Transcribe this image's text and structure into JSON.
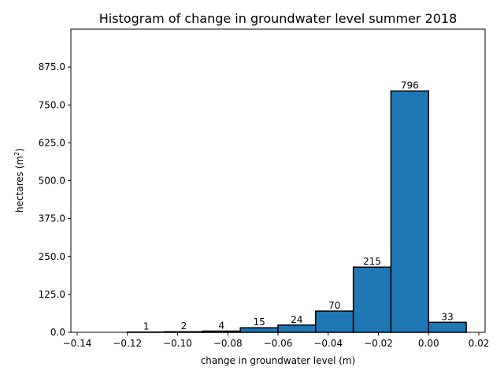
{
  "chart_data": {
    "type": "bar",
    "subtype": "histogram",
    "title": "Histogram of change in groundwater level summer 2018",
    "xlabel": "change in groundwater level (m)",
    "ylabel": "hectares (m²)",
    "ylabel_main": "hectares (m",
    "ylabel_sup": "2",
    "ylabel_end": ")",
    "bin_edges": [
      -0.135,
      -0.12,
      -0.105,
      -0.09,
      -0.075,
      -0.06,
      -0.045,
      -0.03,
      -0.015,
      0.0,
      0.015
    ],
    "values": [
      0,
      1,
      2,
      4,
      15,
      24,
      70,
      215,
      796,
      33
    ],
    "data_labels": [
      "",
      "1",
      "2",
      "4",
      "15",
      "24",
      "70",
      "215",
      "796",
      "33"
    ],
    "xlim": [
      -0.1425,
      0.0225
    ],
    "ylim": [
      0,
      1000
    ],
    "x_ticks": [
      -0.14,
      -0.12,
      -0.1,
      -0.08,
      -0.06,
      -0.04,
      -0.02,
      0.0,
      0.02
    ],
    "x_tick_labels": [
      "−0.14",
      "−0.12",
      "−0.10",
      "−0.08",
      "−0.06",
      "−0.04",
      "−0.02",
      "0.00",
      "0.02"
    ],
    "y_ticks": [
      0,
      125,
      250,
      375,
      500,
      625,
      750,
      875
    ],
    "y_tick_labels": [
      "0.0",
      "125.0",
      "250.0",
      "375.0",
      "500.0",
      "625.0",
      "750.0",
      "875.0"
    ],
    "grid": false,
    "legend": "none",
    "bar_color": "#1f77b4",
    "edge_color": "#000000"
  }
}
